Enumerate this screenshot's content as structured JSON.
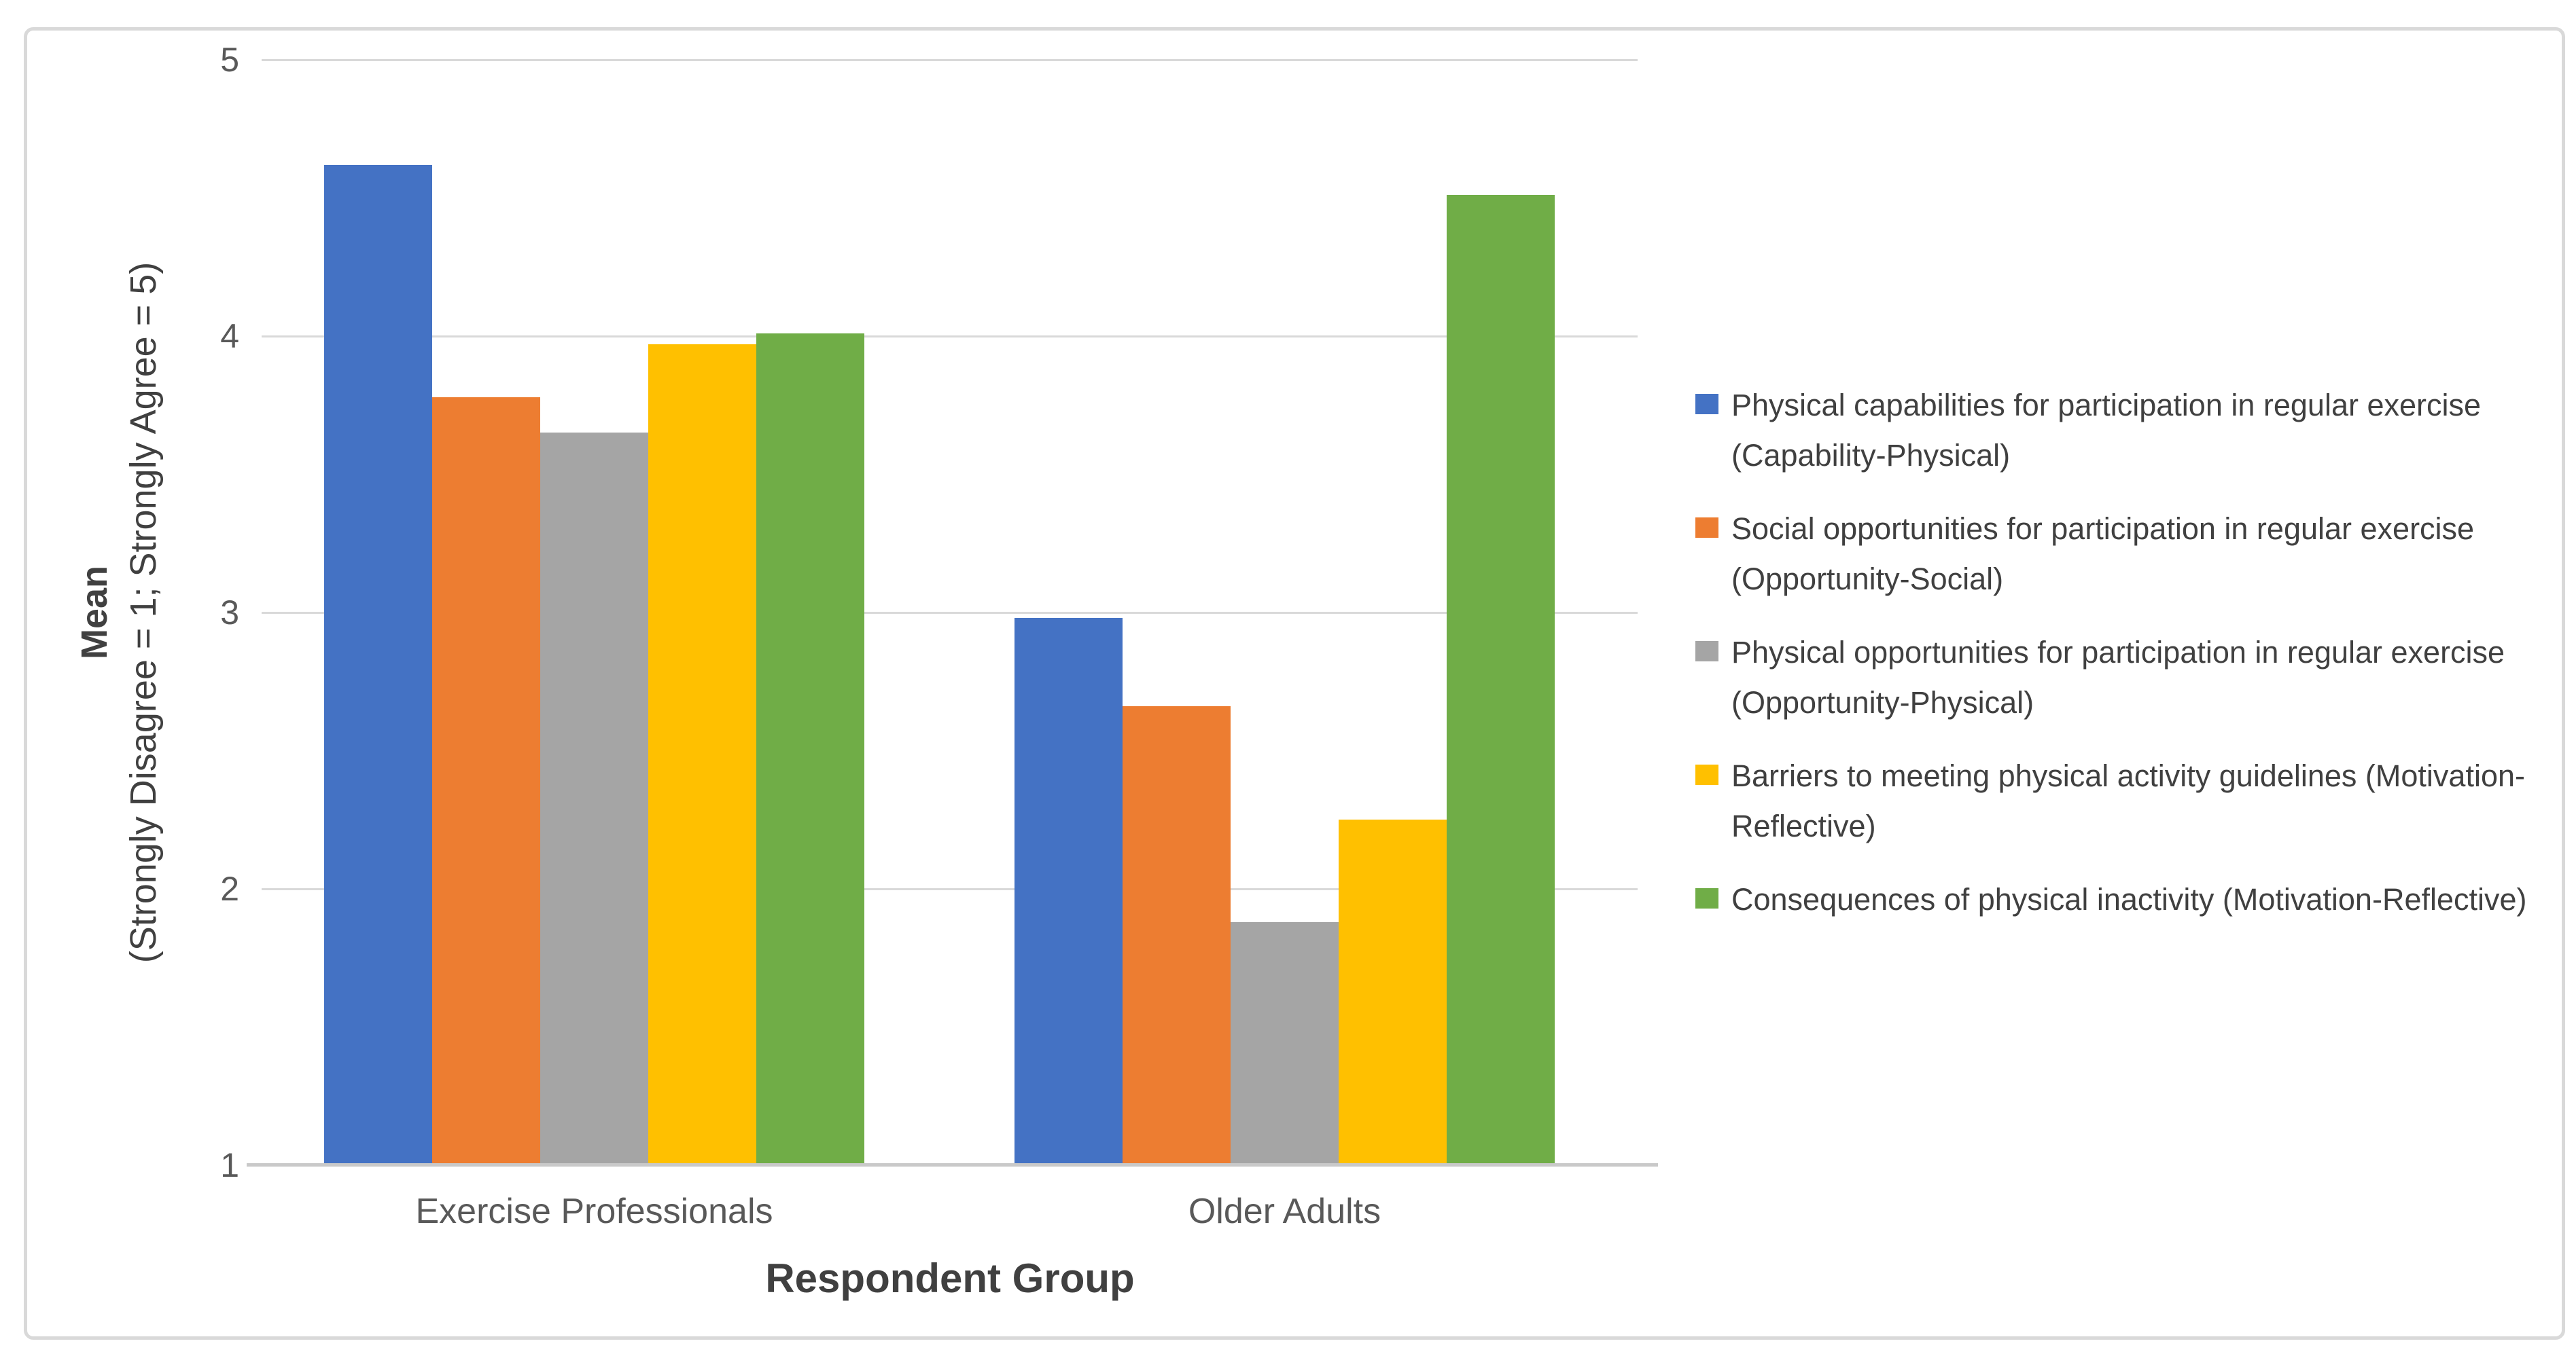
{
  "figure": {
    "background": "#FFFFFF",
    "border_color": "#D9D9D9",
    "gridline_color": "#D9D9D9",
    "axis_line_color": "#C9C9C9",
    "text_color": "#404040",
    "tick_text_color": "#595959"
  },
  "y_axis": {
    "title": "Mean",
    "subtitle": "(Strongly Disagree = 1; Strongly Agree = 5)",
    "tick_labels": [
      "5",
      "4",
      "3",
      "2",
      "1"
    ],
    "min": 1,
    "max": 5
  },
  "x_axis": {
    "title": "Respondent Group",
    "categories": [
      "Exercise Professionals",
      "Older Adults"
    ]
  },
  "chart_data": {
    "type": "bar",
    "categories": [
      "Exercise Professionals",
      "Older Adults"
    ],
    "series": [
      {
        "name": "Physical capabilities for participation in regular exercise (Capability-Physical)",
        "color": "#4472C4",
        "values": [
          4.62,
          2.98
        ]
      },
      {
        "name": "Social opportunities for participation in regular exercise (Opportunity-Social)",
        "color": "#ED7D31",
        "values": [
          3.78,
          2.66
        ]
      },
      {
        "name": "Physical opportunities for participation in regular exercise (Opportunity-Physical)",
        "color": "#A5A5A5",
        "values": [
          3.65,
          1.88
        ]
      },
      {
        "name": "Barriers to meeting physical activity guidelines (Motivation-Reflective)",
        "color": "#FFC000",
        "values": [
          3.97,
          2.25
        ]
      },
      {
        "name": "Consequences of physical inactivity (Motivation-Reflective)",
        "color": "#70AD47",
        "values": [
          4.01,
          4.51
        ]
      }
    ],
    "title": "",
    "xlabel": "Respondent Group",
    "ylabel": "Mean (Strongly Disagree = 1; Strongly Agree = 5)",
    "ylim": [
      1,
      5
    ],
    "grid": true,
    "legend_position": "right"
  }
}
